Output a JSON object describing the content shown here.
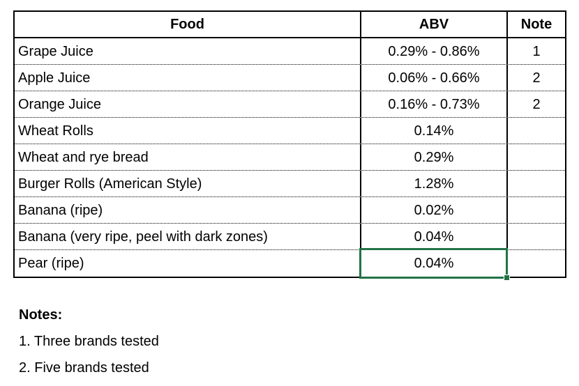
{
  "table": {
    "headers": [
      "Food",
      "ABV",
      "Note"
    ],
    "rows": [
      {
        "food": "Grape Juice",
        "abv": "0.29% - 0.86%",
        "note": "1"
      },
      {
        "food": "Apple Juice",
        "abv": "0.06% - 0.66%",
        "note": "2"
      },
      {
        "food": "Orange Juice",
        "abv": "0.16% - 0.73%",
        "note": "2"
      },
      {
        "food": "Wheat Rolls",
        "abv": "0.14%",
        "note": ""
      },
      {
        "food": "Wheat and rye bread",
        "abv": "0.29%",
        "note": ""
      },
      {
        "food": "Burger Rolls (American Style)",
        "abv": "1.28%",
        "note": ""
      },
      {
        "food": "Banana (ripe)",
        "abv": "0.02%",
        "note": ""
      },
      {
        "food": "Banana (very ripe, peel with dark zones)",
        "abv": "0.04%",
        "note": ""
      },
      {
        "food": "Pear (ripe)",
        "abv": "0.04%",
        "note": ""
      }
    ],
    "selection": {
      "selected_row": "Pear (ripe)",
      "selected_column": "ABV",
      "selected_value": "0.04%",
      "color": "#217346"
    }
  },
  "notes": {
    "title": "Notes:",
    "items": [
      "1. Three brands tested",
      "2. Five brands tested"
    ]
  }
}
